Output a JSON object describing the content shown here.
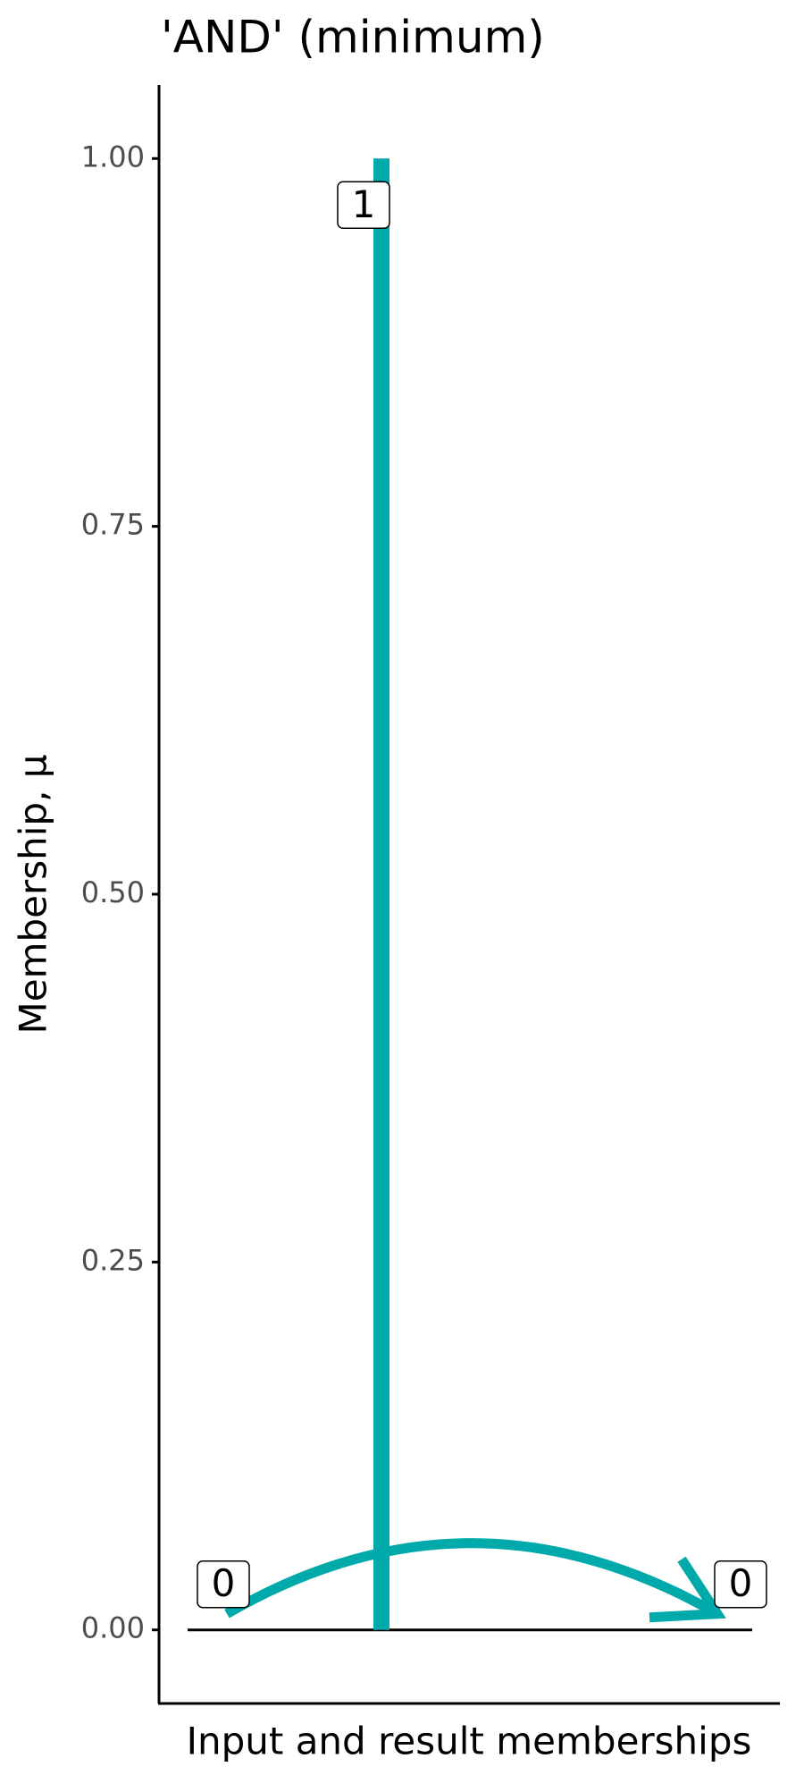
{
  "chart_data": {
    "type": "segment",
    "title": "'AND' (minimum)",
    "x_label": "Input and result memberships",
    "y_label": "Membership, μ",
    "values": [
      0,
      1,
      0
    ],
    "color": "#00aaaa",
    "ylim": [
      -0.05,
      1.05
    ],
    "yticks": [
      {
        "value": 0,
        "label": "0.00"
      },
      {
        "value": 0.25,
        "label": "0.25"
      },
      {
        "value": 0.5,
        "label": "0.50"
      },
      {
        "value": 0.75,
        "label": "0.75"
      },
      {
        "value": 1,
        "label": "1.00"
      }
    ]
  }
}
